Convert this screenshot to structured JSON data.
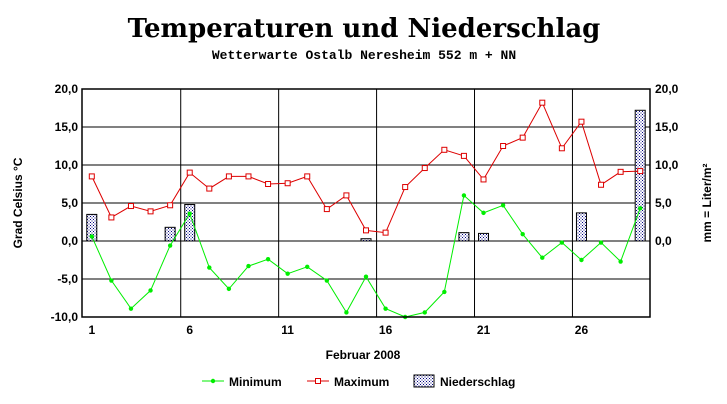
{
  "chart_data": {
    "type": "line",
    "title": "Temperaturen und Niederschlag",
    "subtitle": "Wetterwarte Ostalb Neresheim 552 m + NN",
    "xlabel": "Februar 2008",
    "ylabel_left": "Grad Celsius °C",
    "ylabel_right": "mm = Liter/m²",
    "x": [
      1,
      2,
      3,
      4,
      5,
      6,
      7,
      8,
      9,
      10,
      11,
      12,
      13,
      14,
      15,
      16,
      17,
      18,
      19,
      20,
      21,
      22,
      23,
      24,
      25,
      26,
      27,
      28,
      29
    ],
    "x_tick_labels": [
      "1",
      "6",
      "11",
      "16",
      "21",
      "26"
    ],
    "xlim": [
      0.5,
      29.5
    ],
    "y_tick_labels_left": [
      "20,0",
      "15,0",
      "10,0",
      "5,0",
      "0,0",
      "-5,0",
      "-10,0"
    ],
    "y_tick_labels_right": [
      "20,0",
      "15,0",
      "10,0",
      "5,0",
      "0,0"
    ],
    "ylim": [
      -10,
      20
    ],
    "grid": true,
    "legend_position": "bottom",
    "series": [
      {
        "name": "Minimum",
        "kind": "line",
        "color": "#00ee00",
        "values": [
          0.6,
          -5.2,
          -8.9,
          -6.5,
          -0.6,
          3.6,
          -3.5,
          -6.3,
          -3.3,
          -2.4,
          -4.3,
          -3.4,
          -5.2,
          -9.4,
          -4.7,
          -8.9,
          -10.0,
          -9.4,
          -6.7,
          6.0,
          3.7,
          4.7,
          0.9,
          -2.2,
          -0.2,
          -2.5,
          -0.2,
          -2.7,
          4.3
        ]
      },
      {
        "name": "Maximum",
        "kind": "line",
        "color": "#dd0000",
        "values": [
          8.5,
          3.1,
          4.6,
          3.9,
          4.7,
          9.0,
          6.9,
          8.5,
          8.5,
          7.5,
          7.6,
          8.5,
          4.2,
          6.0,
          1.4,
          1.1,
          7.1,
          9.6,
          12.0,
          11.2,
          8.1,
          12.5,
          13.6,
          18.2,
          12.2,
          15.7,
          7.4,
          9.1,
          9.2
        ]
      },
      {
        "name": "Niederschlag",
        "kind": "bar",
        "color": "#000080",
        "values": [
          3.5,
          0,
          0,
          0,
          1.8,
          4.8,
          0,
          0,
          0,
          0,
          0,
          0,
          0,
          0,
          0.3,
          0,
          0,
          0,
          0,
          1.1,
          1.0,
          0,
          0,
          0,
          0,
          3.7,
          0,
          0,
          17.2
        ]
      }
    ]
  }
}
